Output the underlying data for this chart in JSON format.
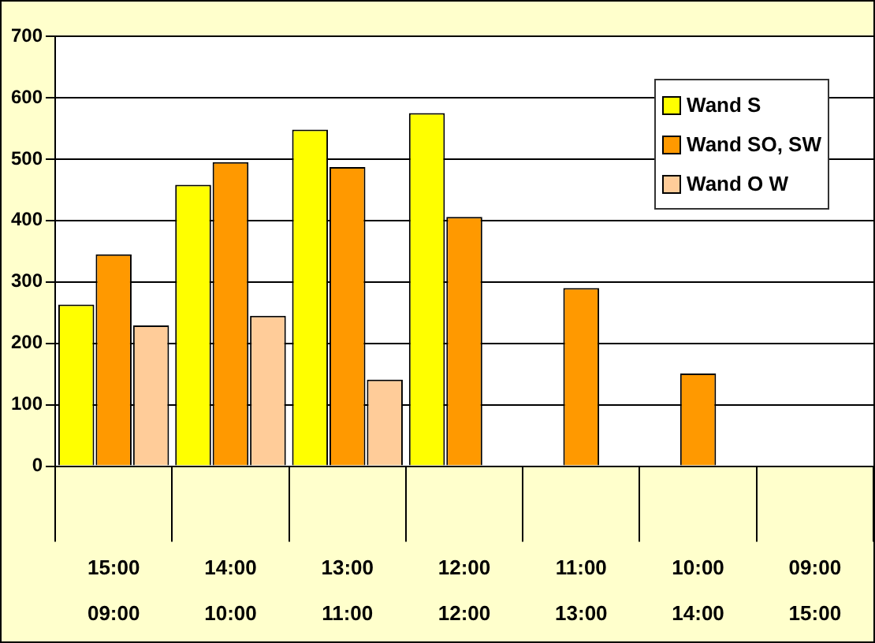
{
  "chart_data": {
    "type": "bar",
    "categories": [
      "15:00\n09:00",
      "14:00\n10:00",
      "13:00\n11:00",
      "12:00\n12:00",
      "11:00\n13:00",
      "10:00\n14:00",
      "09:00\n15:00"
    ],
    "series": [
      {
        "name": "Wand S",
        "color": "#ffff00",
        "values": [
          263,
          458,
          548,
          575,
          null,
          null,
          null
        ]
      },
      {
        "name": "Wand SO, SW",
        "color": "#ff9900",
        "values": [
          345,
          495,
          487,
          406,
          290,
          151,
          null
        ]
      },
      {
        "name": "Wand O W",
        "color": "#ffcc99",
        "values": [
          229,
          245,
          141,
          null,
          null,
          null,
          null
        ]
      }
    ],
    "ylim": [
      0,
      700
    ],
    "yticks": [
      0,
      100,
      200,
      300,
      400,
      500,
      600,
      700
    ],
    "grid": "y",
    "legend": "top right"
  }
}
